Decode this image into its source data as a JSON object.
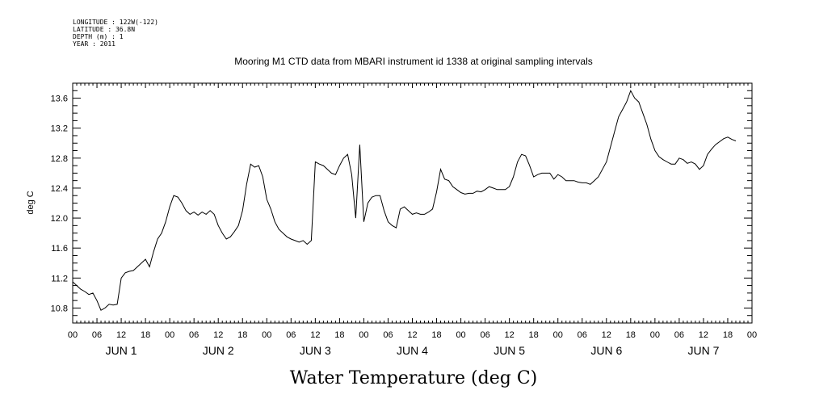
{
  "header": {
    "meta_lines": [
      "LONGITUDE : 122W(-122)",
      "LATITUDE : 36.8N",
      "DEPTH (m) : 1",
      "YEAR : 2011"
    ],
    "title": "Mooring M1 CTD data from MBARI instrument id 1338 at original sampling intervals"
  },
  "chart_data": {
    "type": "line",
    "title": "Mooring M1 CTD data from MBARI instrument id 1338 at original sampling intervals",
    "xlabel": "Water Temperature (deg C)",
    "ylabel": "deg C",
    "ylim": [
      10.6,
      13.8
    ],
    "yticks": [
      "10.8",
      "11.2",
      "11.6",
      "12.0",
      "12.4",
      "12.8",
      "13.2",
      "13.6"
    ],
    "xlim": [
      0,
      168
    ],
    "x_unit": "hours since 2011-06-01 00:00",
    "xtick_labels": [
      "00",
      "06",
      "12",
      "18",
      "00",
      "06",
      "12",
      "18",
      "00",
      "06",
      "12",
      "18",
      "00",
      "06",
      "12",
      "18",
      "00",
      "06",
      "12",
      "18",
      "00",
      "06",
      "12",
      "18",
      "00",
      "06",
      "12",
      "18",
      "00"
    ],
    "day_labels": [
      "JUN  1",
      "JUN  2",
      "JUN  3",
      "JUN  4",
      "JUN  5",
      "JUN  6",
      "JUN  7"
    ],
    "grid": false,
    "series": [
      {
        "name": "",
        "points": [
          [
            0,
            11.15
          ],
          [
            1,
            11.1
          ],
          [
            2,
            11.05
          ],
          [
            3,
            11.02
          ],
          [
            4,
            10.98
          ],
          [
            5,
            11.0
          ],
          [
            6,
            10.9
          ],
          [
            7,
            10.77
          ],
          [
            8,
            10.8
          ],
          [
            9,
            10.85
          ],
          [
            10,
            10.84
          ],
          [
            11,
            10.85
          ],
          [
            12,
            11.2
          ],
          [
            13,
            11.27
          ],
          [
            14,
            11.29
          ],
          [
            15,
            11.3
          ],
          [
            16,
            11.35
          ],
          [
            17,
            11.4
          ],
          [
            18,
            11.45
          ],
          [
            19,
            11.35
          ],
          [
            20,
            11.55
          ],
          [
            21,
            11.72
          ],
          [
            22,
            11.8
          ],
          [
            23,
            11.95
          ],
          [
            24,
            12.15
          ],
          [
            25,
            12.3
          ],
          [
            26,
            12.28
          ],
          [
            27,
            12.2
          ],
          [
            28,
            12.1
          ],
          [
            29,
            12.05
          ],
          [
            30,
            12.08
          ],
          [
            31,
            12.04
          ],
          [
            32,
            12.08
          ],
          [
            33,
            12.05
          ],
          [
            34,
            12.1
          ],
          [
            35,
            12.05
          ],
          [
            36,
            11.9
          ],
          [
            37,
            11.8
          ],
          [
            38,
            11.72
          ],
          [
            39,
            11.75
          ],
          [
            40,
            11.82
          ],
          [
            41,
            11.9
          ],
          [
            42,
            12.1
          ],
          [
            43,
            12.45
          ],
          [
            44,
            12.72
          ],
          [
            45,
            12.68
          ],
          [
            46,
            12.7
          ],
          [
            47,
            12.55
          ],
          [
            48,
            12.25
          ],
          [
            49,
            12.12
          ],
          [
            50,
            11.95
          ],
          [
            51,
            11.85
          ],
          [
            52,
            11.8
          ],
          [
            53,
            11.75
          ],
          [
            54,
            11.72
          ],
          [
            55,
            11.7
          ],
          [
            56,
            11.68
          ],
          [
            57,
            11.7
          ],
          [
            58,
            11.65
          ],
          [
            59,
            11.7
          ],
          [
            60,
            12.75
          ],
          [
            61,
            12.72
          ],
          [
            62,
            12.7
          ],
          [
            63,
            12.65
          ],
          [
            64,
            12.6
          ],
          [
            65,
            12.58
          ],
          [
            66,
            12.7
          ],
          [
            67,
            12.8
          ],
          [
            68,
            12.85
          ],
          [
            69,
            12.58
          ],
          [
            70,
            12.0
          ],
          [
            71,
            12.98
          ],
          [
            72,
            11.95
          ],
          [
            73,
            12.2
          ],
          [
            74,
            12.28
          ],
          [
            75,
            12.3
          ],
          [
            76,
            12.3
          ],
          [
            77,
            12.1
          ],
          [
            78,
            11.95
          ],
          [
            79,
            11.9
          ],
          [
            80,
            11.87
          ],
          [
            81,
            12.12
          ],
          [
            82,
            12.15
          ],
          [
            83,
            12.1
          ],
          [
            84,
            12.05
          ],
          [
            85,
            12.07
          ],
          [
            86,
            12.05
          ],
          [
            87,
            12.05
          ],
          [
            88,
            12.08
          ],
          [
            89,
            12.12
          ],
          [
            90,
            12.35
          ],
          [
            91,
            12.65
          ],
          [
            92,
            12.52
          ],
          [
            93,
            12.5
          ],
          [
            94,
            12.42
          ],
          [
            95,
            12.38
          ],
          [
            96,
            12.34
          ],
          [
            97,
            12.32
          ],
          [
            98,
            12.33
          ],
          [
            99,
            12.33
          ],
          [
            100,
            12.36
          ],
          [
            101,
            12.35
          ],
          [
            102,
            12.38
          ],
          [
            103,
            12.42
          ],
          [
            104,
            12.4
          ],
          [
            105,
            12.38
          ],
          [
            106,
            12.38
          ],
          [
            107,
            12.38
          ],
          [
            108,
            12.42
          ],
          [
            109,
            12.55
          ],
          [
            110,
            12.75
          ],
          [
            111,
            12.85
          ],
          [
            112,
            12.83
          ],
          [
            113,
            12.7
          ],
          [
            114,
            12.55
          ],
          [
            115,
            12.58
          ],
          [
            116,
            12.6
          ],
          [
            117,
            12.6
          ],
          [
            118,
            12.6
          ],
          [
            119,
            12.52
          ],
          [
            120,
            12.58
          ],
          [
            121,
            12.55
          ],
          [
            122,
            12.5
          ],
          [
            123,
            12.5
          ],
          [
            124,
            12.5
          ],
          [
            125,
            12.48
          ],
          [
            126,
            12.47
          ],
          [
            127,
            12.47
          ],
          [
            128,
            12.45
          ],
          [
            129,
            12.5
          ],
          [
            130,
            12.55
          ],
          [
            131,
            12.65
          ],
          [
            132,
            12.75
          ],
          [
            133,
            12.95
          ],
          [
            134,
            13.15
          ],
          [
            135,
            13.35
          ],
          [
            136,
            13.45
          ],
          [
            137,
            13.55
          ],
          [
            138,
            13.7
          ],
          [
            139,
            13.6
          ],
          [
            140,
            13.55
          ],
          [
            141,
            13.4
          ],
          [
            142,
            13.25
          ],
          [
            143,
            13.05
          ],
          [
            144,
            12.9
          ],
          [
            145,
            12.82
          ],
          [
            146,
            12.78
          ],
          [
            147,
            12.75
          ],
          [
            148,
            12.72
          ],
          [
            149,
            12.72
          ],
          [
            150,
            12.8
          ],
          [
            151,
            12.78
          ],
          [
            152,
            12.73
          ],
          [
            153,
            12.75
          ],
          [
            154,
            12.72
          ],
          [
            155,
            12.65
          ],
          [
            156,
            12.7
          ],
          [
            157,
            12.85
          ],
          [
            158,
            12.92
          ],
          [
            159,
            12.98
          ],
          [
            160,
            13.02
          ],
          [
            161,
            13.06
          ],
          [
            162,
            13.08
          ],
          [
            163,
            13.05
          ],
          [
            164,
            13.03
          ]
        ]
      }
    ]
  }
}
